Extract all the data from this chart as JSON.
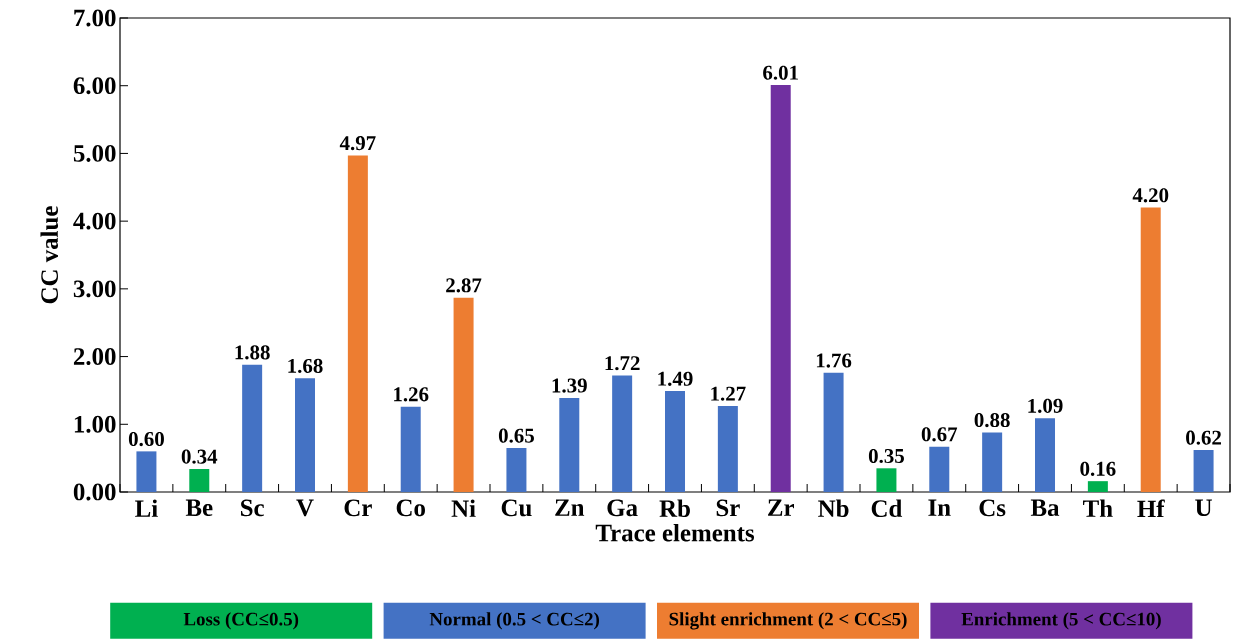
{
  "chart_data": {
    "type": "bar",
    "xlabel": "Trace elements",
    "ylabel": "CC value",
    "categories": [
      "Li",
      "Be",
      "Sc",
      "V",
      "Cr",
      "Co",
      "Ni",
      "Cu",
      "Zn",
      "Ga",
      "Rb",
      "Sr",
      "Zr",
      "Nb",
      "Cd",
      "In",
      "Cs",
      "Ba",
      "Th",
      "Hf",
      "U"
    ],
    "series": [
      {
        "name": "Loss (CC≤0.5)",
        "color": "#00b050",
        "values": [
          null,
          0.34,
          null,
          null,
          null,
          null,
          null,
          null,
          null,
          null,
          null,
          null,
          null,
          null,
          0.35,
          null,
          null,
          null,
          0.16,
          null,
          null
        ],
        "value_labels": [
          null,
          "0.34",
          null,
          null,
          null,
          null,
          null,
          null,
          null,
          null,
          null,
          null,
          null,
          null,
          "0.35",
          null,
          null,
          null,
          "0.16",
          null,
          null
        ]
      },
      {
        "name": "Normal (0.5 < CC≤2)",
        "color": "#4472c4",
        "values": [
          0.6,
          null,
          1.88,
          1.68,
          null,
          1.26,
          null,
          0.65,
          1.39,
          1.72,
          1.49,
          1.27,
          null,
          1.76,
          null,
          0.67,
          0.88,
          1.09,
          null,
          null,
          0.62
        ],
        "value_labels": [
          "0.60",
          null,
          "1.88",
          "1.68",
          null,
          "1.26",
          null,
          "0.65",
          "1.39",
          "1.72",
          "1.49",
          "1.27",
          null,
          "1.76",
          null,
          "0.67",
          "0.88",
          "1.09",
          null,
          null,
          "0.62"
        ]
      },
      {
        "name": "Slight enrichment (2 < CC≤5)",
        "color": "#ed7d31",
        "values": [
          null,
          null,
          null,
          null,
          4.97,
          null,
          2.87,
          null,
          null,
          null,
          null,
          null,
          null,
          null,
          null,
          null,
          null,
          null,
          null,
          4.2,
          null
        ],
        "value_labels": [
          null,
          null,
          null,
          null,
          "4.97",
          null,
          "2.87",
          null,
          null,
          null,
          null,
          null,
          null,
          null,
          null,
          null,
          null,
          null,
          null,
          "4.20",
          null
        ]
      },
      {
        "name": "Enrichment (5 < CC≤10)",
        "color": "#7030a0",
        "values": [
          null,
          null,
          null,
          null,
          null,
          null,
          null,
          null,
          null,
          null,
          null,
          null,
          6.01,
          null,
          null,
          null,
          null,
          null,
          null,
          null,
          null
        ],
        "value_labels": [
          null,
          null,
          null,
          null,
          null,
          null,
          null,
          null,
          null,
          null,
          null,
          null,
          "6.01",
          null,
          null,
          null,
          null,
          null,
          null,
          null,
          null
        ]
      }
    ],
    "ylim": [
      0,
      7
    ],
    "yticks": [
      {
        "value": 0,
        "label": "0.00"
      },
      {
        "value": 1,
        "label": "1.00"
      },
      {
        "value": 2,
        "label": "2.00"
      },
      {
        "value": 3,
        "label": "3.00"
      },
      {
        "value": 4,
        "label": "4.00"
      },
      {
        "value": 5,
        "label": "5.00"
      },
      {
        "value": 6,
        "label": "6.00"
      },
      {
        "value": 7,
        "label": "7.00"
      }
    ],
    "legend": "bottom",
    "grid": false
  }
}
